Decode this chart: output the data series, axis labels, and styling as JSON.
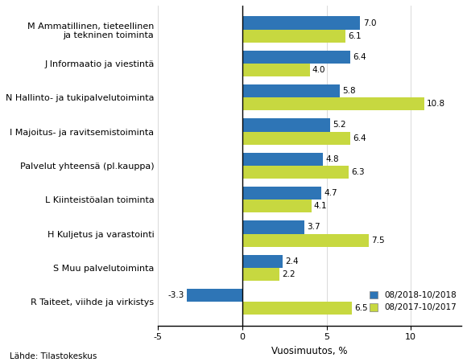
{
  "categories": [
    "R Taiteet, viihde ja virkistys",
    "S Muu palvelutoiminta",
    "H Kuljetus ja varastointi",
    "L Kiinteistöalan toiminta",
    "Palvelut yhteensä (pl.kauppa)",
    "I Majoitus- ja ravitsemistoiminta",
    "N Hallinto- ja tukipalvelutoiminta",
    "J Informaatio ja viestintä",
    "M Ammatillinen, tieteellinen\nja tekninen toiminta"
  ],
  "values_2018": [
    -3.3,
    2.4,
    3.7,
    4.7,
    4.8,
    5.2,
    5.8,
    6.4,
    7.0
  ],
  "values_2017": [
    6.5,
    2.2,
    7.5,
    4.1,
    6.3,
    6.4,
    10.8,
    4.0,
    6.1
  ],
  "color_2018": "#2E75B6",
  "color_2017": "#C7D840",
  "legend_2018": "08/2018-10/2018",
  "legend_2017": "08/2017-10/2017",
  "xlabel": "Vuosimuutos, %",
  "xlim": [
    -5,
    13
  ],
  "xticks": [
    -5,
    0,
    5,
    10
  ],
  "xtick_labels": [
    "-5",
    "0",
    "5",
    "10"
  ],
  "source": "Lähde: Tilastokeskus",
  "bar_height": 0.38,
  "label_fontsize": 7.5,
  "tick_fontsize": 8.0,
  "xlabel_fontsize": 8.5
}
